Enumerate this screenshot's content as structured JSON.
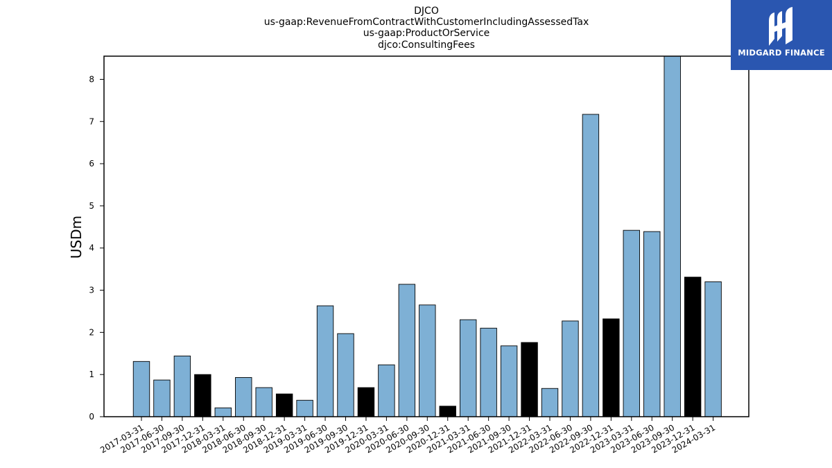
{
  "chart_data": {
    "type": "bar",
    "title_lines": [
      "DJCO",
      "us-gaap:RevenueFromContractWithCustomerIncludingAssessedTax",
      "us-gaap:ProductOrService",
      "djco:ConsultingFees"
    ],
    "ylabel": "USDm",
    "ylim": [
      0,
      8.55
    ],
    "yticks": [
      0,
      1,
      2,
      3,
      4,
      5,
      6,
      7,
      8
    ],
    "categories": [
      "2017-03-31",
      "2017-06-30",
      "2017-09-30",
      "2017-12-31",
      "2018-03-31",
      "2018-06-30",
      "2018-09-30",
      "2018-12-31",
      "2019-03-31",
      "2019-06-30",
      "2019-09-30",
      "2019-12-31",
      "2020-03-31",
      "2020-06-30",
      "2020-09-30",
      "2020-12-31",
      "2021-03-31",
      "2021-06-30",
      "2021-09-30",
      "2021-12-31",
      "2022-03-31",
      "2022-06-30",
      "2022-09-30",
      "2022-12-31",
      "2023-03-31",
      "2023-06-30",
      "2023-09-30",
      "2023-12-31",
      "2024-03-31"
    ],
    "values": [
      1.31,
      0.87,
      1.44,
      1.0,
      0.21,
      0.93,
      0.69,
      0.54,
      0.39,
      2.63,
      1.97,
      0.69,
      1.23,
      3.14,
      2.65,
      0.25,
      2.3,
      2.1,
      1.68,
      1.76,
      0.67,
      2.27,
      7.17,
      2.32,
      4.42,
      4.39,
      8.6,
      3.31,
      3.2
    ],
    "bar_colors": [
      "#7eb0d5",
      "#7eb0d5",
      "#7eb0d5",
      "#000000",
      "#7eb0d5",
      "#7eb0d5",
      "#7eb0d5",
      "#000000",
      "#7eb0d5",
      "#7eb0d5",
      "#7eb0d5",
      "#000000",
      "#7eb0d5",
      "#7eb0d5",
      "#7eb0d5",
      "#000000",
      "#7eb0d5",
      "#7eb0d5",
      "#7eb0d5",
      "#000000",
      "#7eb0d5",
      "#7eb0d5",
      "#7eb0d5",
      "#000000",
      "#7eb0d5",
      "#7eb0d5",
      "#7eb0d5",
      "#000000",
      "#7eb0d5"
    ],
    "grid": false,
    "legend": "none"
  },
  "logo": {
    "text": "MIDGARD FINANCE",
    "color": "#2a56b0"
  }
}
